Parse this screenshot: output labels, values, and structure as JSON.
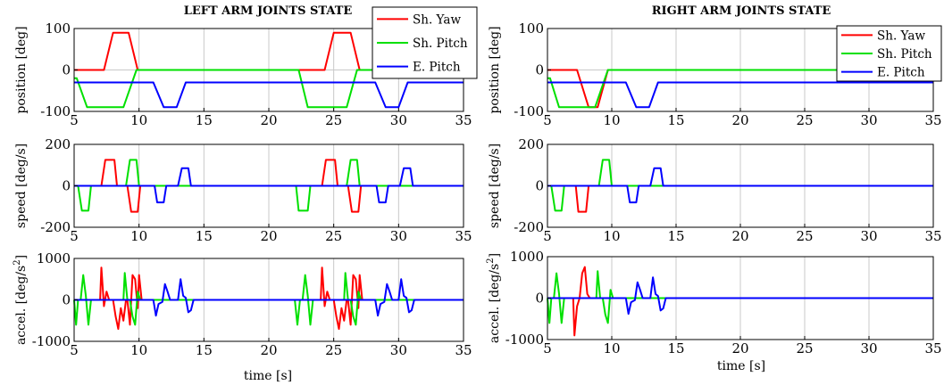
{
  "chart_data": [
    {
      "title": "LEFT ARM JOINTS STATE",
      "xlabel": "time [s]",
      "xlim": [
        5,
        35
      ],
      "xticks": [
        5,
        10,
        15,
        20,
        25,
        30,
        35
      ],
      "grid": true,
      "legend": {
        "placement": "top-right",
        "entries": [
          "Sh. Yaw",
          "Sh. Pitch",
          "E. Pitch"
        ]
      },
      "colors": {
        "Sh. Yaw": "#ff0000",
        "Sh. Pitch": "#00e000",
        "E. Pitch": "#0000ff"
      },
      "subplots": [
        {
          "type": "line",
          "ylabel": "position [deg]",
          "ylim": [
            -100,
            100
          ],
          "yticks": [
            -100,
            0,
            100
          ],
          "series": [
            {
              "name": "Sh. Yaw",
              "x": [
                5,
                7.3,
                8,
                9.2,
                9.9,
                22.2,
                24.3,
                25,
                26.3,
                27,
                35
              ],
              "y": [
                0,
                0,
                90,
                90,
                0,
                0,
                0,
                90,
                90,
                0,
                0
              ]
            },
            {
              "name": "Sh. Pitch",
              "x": [
                5,
                5.2,
                6,
                8.8,
                9.8,
                22.3,
                23,
                26,
                26.8,
                35
              ],
              "y": [
                -20,
                -20,
                -90,
                -90,
                0,
                0,
                -90,
                -90,
                0,
                0
              ]
            },
            {
              "name": "E. Pitch",
              "x": [
                5,
                11.1,
                11.9,
                12.9,
                13.6,
                28.2,
                29,
                30,
                30.7,
                35
              ],
              "y": [
                -30,
                -30,
                -90,
                -90,
                -30,
                -30,
                -90,
                -90,
                -30,
                -30
              ]
            }
          ]
        },
        {
          "type": "line",
          "ylabel": "speed [deg/s]",
          "ylim": [
            -200,
            200
          ],
          "yticks": [
            -200,
            0,
            200
          ],
          "series": [
            {
              "name": "Sh. Yaw",
              "x": [
                5,
                7.1,
                7.4,
                8.1,
                8.3,
                9.1,
                9.4,
                9.9,
                10.1,
                24.1,
                24.4,
                25.1,
                25.3,
                26.1,
                26.4,
                26.9,
                27.1,
                35
              ],
              "y": [
                0,
                0,
                125,
                125,
                0,
                0,
                -125,
                -125,
                0,
                0,
                125,
                125,
                0,
                0,
                -125,
                -125,
                0,
                0
              ]
            },
            {
              "name": "Sh. Pitch",
              "x": [
                5,
                5.3,
                5.6,
                6.1,
                6.3,
                9.0,
                9.3,
                9.8,
                10.0,
                22.1,
                22.3,
                23.0,
                23.2,
                26.0,
                26.3,
                26.8,
                27.0,
                35
              ],
              "y": [
                0,
                0,
                -120,
                -120,
                0,
                0,
                125,
                125,
                0,
                0,
                -120,
                -120,
                0,
                0,
                125,
                125,
                0,
                0
              ]
            },
            {
              "name": "E. Pitch",
              "x": [
                5,
                11.2,
                11.4,
                11.9,
                12.1,
                13.0,
                13.3,
                13.8,
                14.0,
                28.3,
                28.5,
                29.0,
                29.2,
                30.1,
                30.4,
                30.9,
                31.1,
                35
              ],
              "y": [
                0,
                0,
                -80,
                -80,
                0,
                0,
                85,
                85,
                0,
                0,
                -80,
                -80,
                0,
                0,
                85,
                85,
                0,
                0
              ]
            }
          ]
        },
        {
          "type": "line",
          "ylabel": "accel. [deg/s2]",
          "ylim": [
            -1000,
            1000
          ],
          "yticks": [
            -1000,
            0,
            1000
          ],
          "series": [
            {
              "name": "Sh. Yaw",
              "x": [
                5,
                7.0,
                7.1,
                7.3,
                7.5,
                7.7,
                8.0,
                8.2,
                8.4,
                8.6,
                8.8,
                9.0,
                9.1,
                9.3,
                9.5,
                9.7,
                9.9,
                10.0,
                10.2,
                24.0,
                24.1,
                24.3,
                24.5,
                24.7,
                25.0,
                25.2,
                25.4,
                25.6,
                25.8,
                26.0,
                26.1,
                26.3,
                26.5,
                26.7,
                26.9,
                27.0,
                27.2,
                35
              ],
              "y": [
                0,
                0,
                780,
                -150,
                200,
                0,
                0,
                -400,
                -700,
                -200,
                -500,
                0,
                0,
                -600,
                600,
                500,
                -200,
                600,
                0,
                0,
                780,
                -150,
                200,
                0,
                0,
                -400,
                -700,
                -200,
                -500,
                0,
                0,
                -600,
                600,
                500,
                -200,
                600,
                0,
                0
              ]
            },
            {
              "name": "Sh. Pitch",
              "x": [
                5,
                5.15,
                5.3,
                5.5,
                5.7,
                5.9,
                6.1,
                6.3,
                6.5,
                8.8,
                8.9,
                9.1,
                9.3,
                9.5,
                9.7,
                9.9,
                10.1,
                22.0,
                22.2,
                22.4,
                22.6,
                22.8,
                23.0,
                23.2,
                23.4,
                25.8,
                25.9,
                26.1,
                26.3,
                26.5,
                26.7,
                26.9,
                27.1,
                35
              ],
              "y": [
                0,
                -600,
                0,
                0,
                600,
                100,
                -600,
                0,
                0,
                0,
                650,
                0,
                0,
                -400,
                -600,
                200,
                0,
                0,
                -600,
                0,
                0,
                600,
                100,
                -600,
                0,
                0,
                650,
                0,
                0,
                -400,
                -600,
                200,
                0,
                0
              ]
            },
            {
              "name": "E. Pitch",
              "x": [
                5,
                11.1,
                11.3,
                11.5,
                11.8,
                12.0,
                12.2,
                12.4,
                13.0,
                13.2,
                13.4,
                13.6,
                13.8,
                14.0,
                14.2,
                28.2,
                28.4,
                28.6,
                28.9,
                29.1,
                29.3,
                29.5,
                30.0,
                30.2,
                30.4,
                30.6,
                30.8,
                31.0,
                31.2,
                35
              ],
              "y": [
                0,
                0,
                -380,
                -100,
                -50,
                380,
                200,
                0,
                0,
                500,
                100,
                50,
                -300,
                -250,
                0,
                0,
                -380,
                -100,
                -50,
                380,
                200,
                0,
                0,
                500,
                100,
                50,
                -300,
                -250,
                0,
                0
              ]
            }
          ]
        }
      ]
    },
    {
      "title": "RIGHT ARM JOINTS STATE",
      "xlabel": "time [s]",
      "xlim": [
        5,
        35
      ],
      "xticks": [
        5,
        10,
        15,
        20,
        25,
        30,
        35
      ],
      "grid": true,
      "legend": {
        "placement": "top-right",
        "entries": [
          "Sh. Yaw",
          "Sh. Pitch",
          "E. Pitch"
        ]
      },
      "colors": {
        "Sh. Yaw": "#ff0000",
        "Sh. Pitch": "#00e000",
        "E. Pitch": "#0000ff"
      },
      "subplots": [
        {
          "type": "line",
          "ylabel": "position [deg]",
          "ylim": [
            -100,
            100
          ],
          "yticks": [
            -100,
            0,
            100
          ],
          "series": [
            {
              "name": "Sh. Yaw",
              "x": [
                5,
                7.3,
                8.2,
                8.9,
                9.7,
                35
              ],
              "y": [
                0,
                0,
                -90,
                -90,
                0,
                0
              ]
            },
            {
              "name": "Sh. Pitch",
              "x": [
                5,
                5.2,
                5.9,
                8.7,
                9.7,
                35
              ],
              "y": [
                -20,
                -20,
                -90,
                -90,
                0,
                0
              ]
            },
            {
              "name": "E. Pitch",
              "x": [
                5,
                11.1,
                11.9,
                12.9,
                13.6,
                35
              ],
              "y": [
                -30,
                -30,
                -90,
                -90,
                -30,
                -30
              ]
            }
          ]
        },
        {
          "type": "line",
          "ylabel": "speed [deg/s]",
          "ylim": [
            -200,
            200
          ],
          "yticks": [
            -200,
            0,
            200
          ],
          "series": [
            {
              "name": "Sh. Yaw",
              "x": [
                5,
                7.2,
                7.4,
                8.0,
                8.2,
                35
              ],
              "y": [
                0,
                0,
                -125,
                -125,
                0,
                0
              ]
            },
            {
              "name": "Sh. Pitch",
              "x": [
                5,
                5.3,
                5.6,
                6.1,
                6.3,
                9.0,
                9.3,
                9.8,
                10.0,
                35
              ],
              "y": [
                0,
                0,
                -120,
                -120,
                0,
                0,
                125,
                125,
                0,
                0
              ]
            },
            {
              "name": "E. Pitch",
              "x": [
                5,
                11.2,
                11.4,
                11.9,
                12.1,
                13.0,
                13.3,
                13.8,
                14.0,
                35
              ],
              "y": [
                0,
                0,
                -80,
                -80,
                0,
                0,
                85,
                85,
                0,
                0
              ]
            }
          ]
        },
        {
          "type": "line",
          "ylabel": "accel. [deg/s2]",
          "ylim": [
            -1000,
            1000
          ],
          "yticks": [
            -1000,
            0,
            1000
          ],
          "series": [
            {
              "name": "Sh. Yaw",
              "x": [
                5,
                7.0,
                7.1,
                7.3,
                7.5,
                7.7,
                7.9,
                8.1,
                8.3,
                35
              ],
              "y": [
                0,
                0,
                -900,
                -200,
                0,
                600,
                750,
                100,
                0,
                0
              ]
            },
            {
              "name": "Sh. Pitch",
              "x": [
                5,
                5.15,
                5.3,
                5.5,
                5.7,
                5.9,
                6.1,
                6.3,
                6.5,
                8.8,
                8.9,
                9.1,
                9.3,
                9.5,
                9.7,
                9.9,
                10.1,
                35
              ],
              "y": [
                0,
                -600,
                0,
                0,
                600,
                100,
                -600,
                0,
                0,
                0,
                650,
                0,
                0,
                -400,
                -600,
                200,
                0,
                0
              ]
            },
            {
              "name": "E. Pitch",
              "x": [
                5,
                11.1,
                11.3,
                11.5,
                11.8,
                12.0,
                12.2,
                12.4,
                13.0,
                13.2,
                13.4,
                13.6,
                13.8,
                14.0,
                14.2,
                35
              ],
              "y": [
                0,
                0,
                -380,
                -100,
                -50,
                380,
                200,
                0,
                0,
                500,
                100,
                50,
                -300,
                -250,
                0,
                0
              ]
            }
          ]
        }
      ]
    }
  ]
}
